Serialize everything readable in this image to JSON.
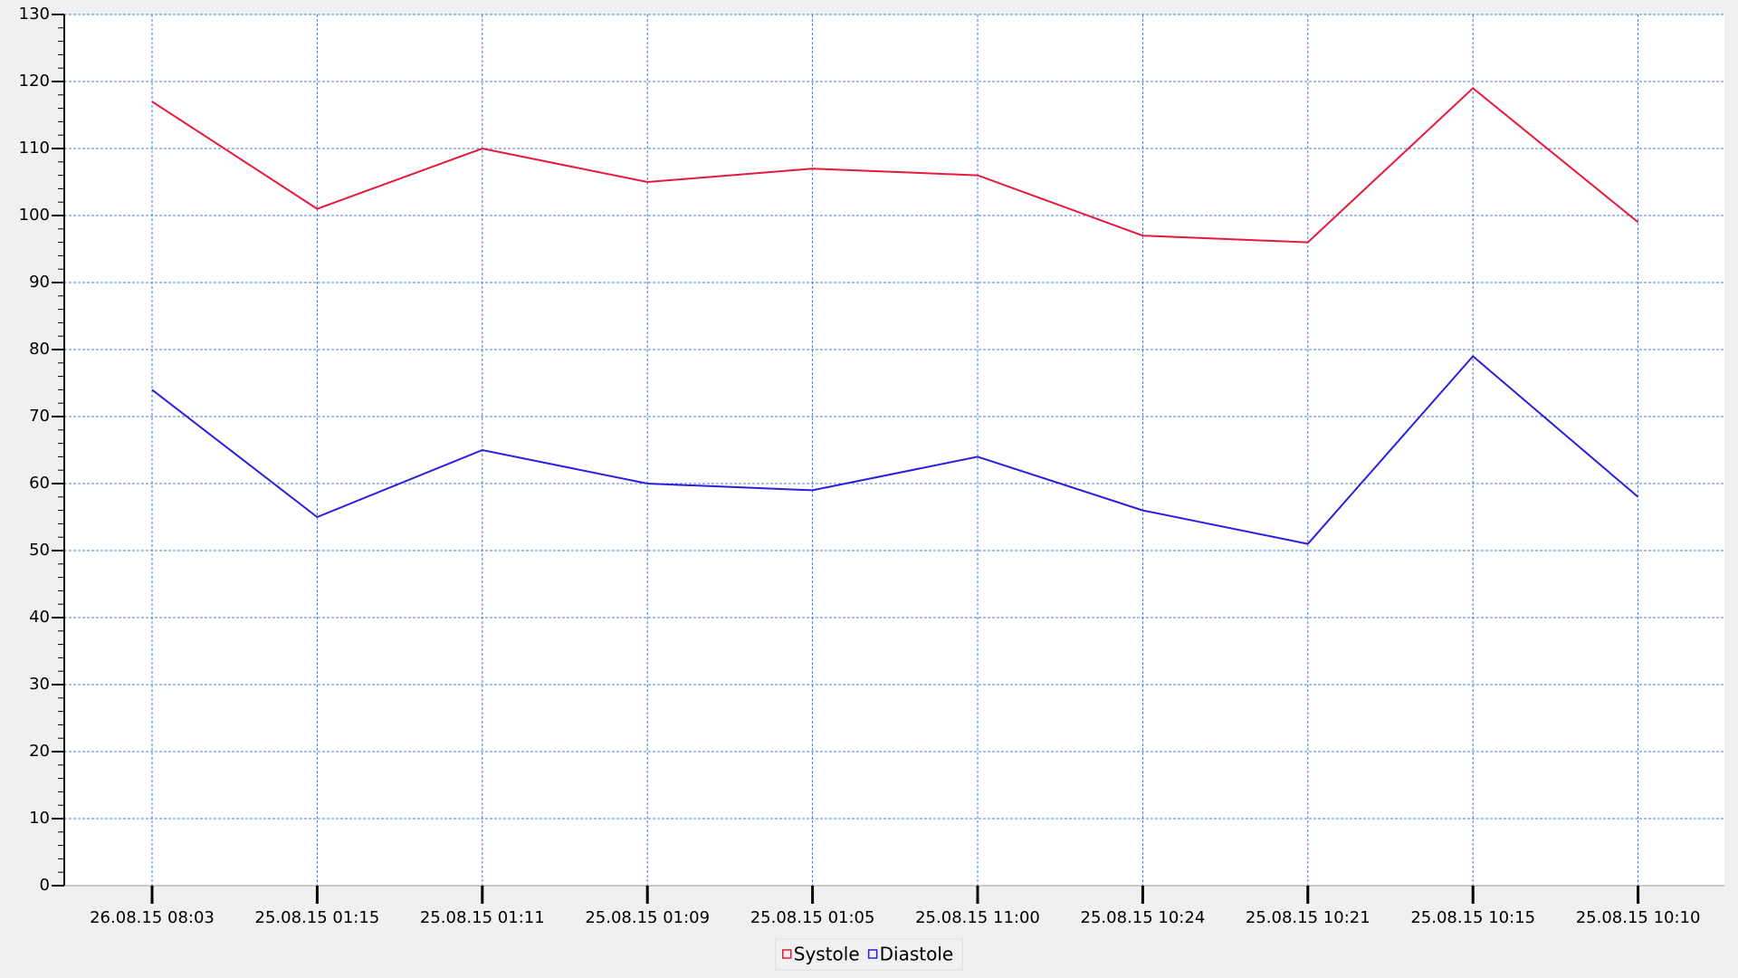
{
  "chart_data": {
    "type": "line",
    "categories": [
      "26.08.15 08:03",
      "25.08.15 01:15",
      "25.08.15 01:11",
      "25.08.15 01:09",
      "25.08.15 01:05",
      "25.08.15 11:00",
      "25.08.15 10:24",
      "25.08.15 10:21",
      "25.08.15 10:15",
      "25.08.15 10:10"
    ],
    "series": [
      {
        "name": "Systole",
        "color": "#e8193c",
        "values": [
          117,
          101,
          110,
          105,
          107,
          106,
          97,
          96,
          119,
          99
        ]
      },
      {
        "name": "Diastole",
        "color": "#2b1ee0",
        "values": [
          74,
          55,
          65,
          60,
          59,
          64,
          56,
          51,
          79,
          58
        ]
      }
    ],
    "ylim": [
      0,
      130
    ],
    "yticks": [
      0,
      10,
      20,
      30,
      40,
      50,
      60,
      70,
      80,
      90,
      100,
      110,
      120,
      130
    ],
    "grid": true,
    "legend": "bottom"
  }
}
